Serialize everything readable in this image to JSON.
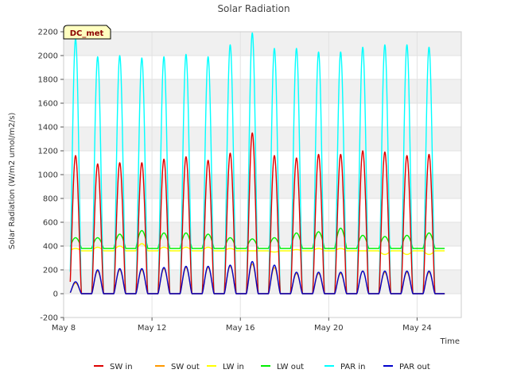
{
  "chart_data": {
    "type": "line",
    "title": "Solar Radiation",
    "xlabel": "Time",
    "ylabel": "Solar Radiation (W/m2 umol/m2/s)",
    "badge": "DC_met",
    "ylim": [
      -200,
      2200
    ],
    "yticks": [
      -200,
      0,
      200,
      400,
      600,
      800,
      1000,
      1200,
      1400,
      1600,
      1800,
      2000,
      2200
    ],
    "xlim": [
      "2024-05-08",
      "2024-05-26"
    ],
    "xticks": [
      {
        "value": "2024-05-08",
        "label": "May 8"
      },
      {
        "value": "2024-05-12",
        "label": "May 12"
      },
      {
        "value": "2024-05-16",
        "label": "May 16"
      },
      {
        "value": "2024-05-20",
        "label": "May 20"
      },
      {
        "value": "2024-05-24",
        "label": "May 24"
      }
    ],
    "grid": true,
    "legend_position": "bottom",
    "day_dates": [
      "2024-05-08",
      "2024-05-09",
      "2024-05-10",
      "2024-05-11",
      "2024-05-12",
      "2024-05-13",
      "2024-05-14",
      "2024-05-15",
      "2024-05-16",
      "2024-05-17",
      "2024-05-18",
      "2024-05-19",
      "2024-05-20",
      "2024-05-21",
      "2024-05-22",
      "2024-05-23",
      "2024-05-24",
      "2024-05-25"
    ],
    "series": [
      {
        "name": "SW in",
        "color": "#dd0000",
        "daily_peak": [
          1160,
          1090,
          1100,
          1100,
          1130,
          1150,
          1120,
          1180,
          1350,
          1160,
          1140,
          1170,
          1170,
          1200,
          1190,
          1160,
          1170,
          0
        ],
        "night": 0
      },
      {
        "name": "SW out",
        "color": "#ff9900",
        "daily_peak": [
          90,
          190,
          200,
          200,
          210,
          220,
          220,
          230,
          250,
          220,
          170,
          170,
          170,
          190,
          180,
          180,
          180,
          0
        ],
        "night": 0
      },
      {
        "name": "LW in",
        "color": "#ffff00",
        "daily_peak": [
          380,
          390,
          400,
          420,
          390,
          390,
          390,
          380,
          360,
          350,
          370,
          380,
          380,
          360,
          330,
          330,
          330,
          320
        ],
        "night": 360
      },
      {
        "name": "LW out",
        "color": "#00ee00",
        "daily_peak": [
          470,
          470,
          500,
          530,
          510,
          510,
          500,
          470,
          460,
          470,
          510,
          520,
          550,
          490,
          480,
          490,
          510,
          360
        ],
        "night": 380
      },
      {
        "name": "PAR in",
        "color": "#00ffff",
        "daily_peak": [
          2140,
          1990,
          2000,
          1980,
          1990,
          2010,
          1990,
          2090,
          2190,
          2060,
          2060,
          2030,
          2030,
          2070,
          2090,
          2090,
          2070,
          0
        ],
        "night": 0
      },
      {
        "name": "PAR out",
        "color": "#0000cc",
        "daily_peak": [
          100,
          200,
          210,
          210,
          220,
          230,
          230,
          240,
          270,
          240,
          180,
          180,
          180,
          190,
          190,
          190,
          190,
          0
        ],
        "night": 0
      }
    ]
  }
}
